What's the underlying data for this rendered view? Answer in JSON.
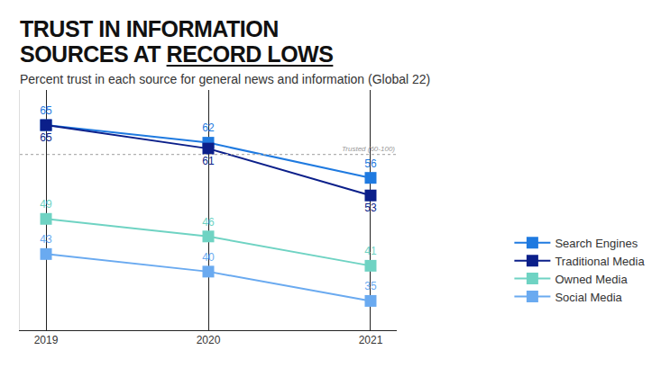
{
  "chart_data": {
    "type": "line",
    "title": "TRUST IN INFORMATION SOURCES AT RECORD LOWS",
    "subtitle": "Percent trust in each source for general news and information (Global 22)",
    "categories": [
      "2019",
      "2020",
      "2021"
    ],
    "series": [
      {
        "name": "Search Engines",
        "color": "#1f7ae0",
        "values": [
          65,
          62,
          56
        ]
      },
      {
        "name": "Traditional Media",
        "color": "#0b1f8a",
        "values": [
          65,
          61,
          53
        ]
      },
      {
        "name": "Owned Media",
        "color": "#6fd3c3",
        "values": [
          49,
          46,
          41
        ]
      },
      {
        "name": "Social Media",
        "color": "#6aaaf0",
        "values": [
          43,
          40,
          35
        ]
      }
    ],
    "ylim": [
      30,
      71
    ],
    "annotations": [
      {
        "text": "Trusted (60-100)",
        "y": 60
      }
    ],
    "tick_labels": "x",
    "grid": "x",
    "legend": "right",
    "data_labels": true,
    "marker": "square",
    "line_style": "solid"
  }
}
